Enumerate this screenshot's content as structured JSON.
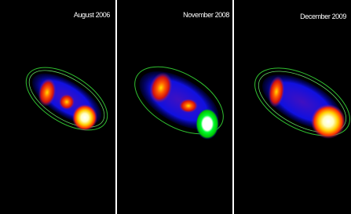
{
  "panels": [
    {
      "label": "August 2006"
    },
    {
      "label": "November 2008"
    },
    {
      "label": "December 2009"
    }
  ]
}
